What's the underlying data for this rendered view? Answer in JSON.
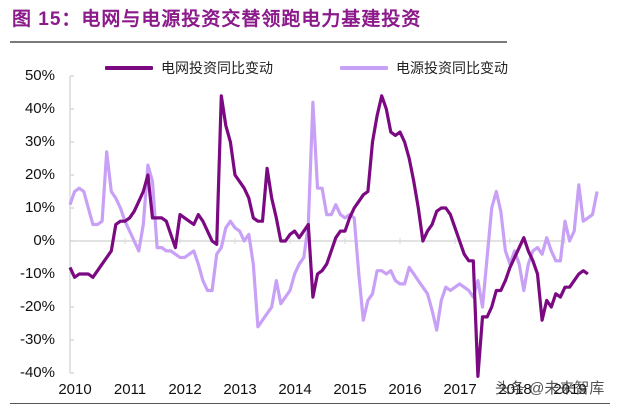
{
  "title": "图 15：电网与电源投资交替领跑电力基建投资",
  "watermark": "头条 @未来智库",
  "colors": {
    "title": "#8b1a8b",
    "grid_series": "#7b0a82",
    "power_series": "#c8a0f5",
    "axis": "#d9d9d9"
  },
  "legend": [
    {
      "name": "电网投资同比变动",
      "color": "#7b0a82"
    },
    {
      "name": "电源投资同比变动",
      "color": "#c8a0f5"
    }
  ],
  "chart_data": {
    "type": "line",
    "title": "图 15：电网与电源投资交替领跑电力基建投资",
    "xlabel": "",
    "ylabel": "",
    "ylim": [
      -0.4,
      0.5
    ],
    "yticks": [
      "50%",
      "40%",
      "30%",
      "20%",
      "10%",
      "0%",
      "-10%",
      "-20%",
      "-30%",
      "-40%"
    ],
    "xticks": [
      "2010",
      "2011",
      "2012",
      "2013",
      "2014",
      "2015",
      "2016",
      "2017",
      "2018",
      "2019"
    ],
    "grid": "zero-line only",
    "legend_position": "top",
    "x_unit": "monthly, Jan 2010 onwards",
    "series": [
      {
        "name": "电网投资同比变动",
        "color": "#7b0a82",
        "values": [
          -8,
          -11,
          -10,
          -10,
          -10,
          -11,
          -9,
          -7,
          -5,
          -3,
          5,
          6,
          6,
          7,
          9,
          12,
          15,
          20,
          7,
          7,
          7,
          6,
          2,
          -2,
          8,
          7,
          6,
          5,
          8,
          6,
          3,
          0,
          -1,
          44,
          35,
          30,
          20,
          18,
          16,
          13,
          7,
          6,
          6,
          22,
          13,
          7,
          0,
          0,
          2,
          3,
          1,
          3,
          5,
          -17,
          -10,
          -9,
          -7,
          -3,
          1,
          3,
          3,
          7,
          10,
          12,
          14,
          15,
          30,
          38,
          44,
          40,
          33,
          32,
          33,
          30,
          25,
          18,
          10,
          0,
          3,
          5,
          9,
          10,
          10,
          8,
          4,
          0,
          -4,
          -6,
          -6,
          -41,
          -23,
          -23,
          -20,
          -15,
          -15,
          -12,
          -8,
          -5,
          -2,
          1,
          -3,
          -6,
          -10,
          -24,
          -18,
          -20,
          -16,
          -17,
          -14,
          -14,
          -12,
          -10,
          -9,
          -10
        ]
      },
      {
        "name": "电源投资同比变动",
        "color": "#c8a0f5",
        "values": [
          11,
          15,
          16,
          15,
          10,
          5,
          5,
          6,
          27,
          15,
          13,
          10,
          6,
          3,
          0,
          -3,
          5,
          23,
          18,
          -2,
          -2,
          -3,
          -3,
          -4,
          -5,
          -5,
          -4,
          -3,
          -7,
          -12,
          -15,
          -15,
          -4,
          -2,
          4,
          6,
          4,
          3,
          0,
          2,
          -7,
          -26,
          -24,
          -22,
          -20,
          -12,
          -19,
          -17,
          -15,
          -10,
          -7,
          -5,
          5,
          42,
          16,
          16,
          8,
          8,
          11,
          8,
          7,
          8,
          7,
          -10,
          -24,
          -18,
          -16,
          -9,
          -9,
          -10,
          -9,
          -12,
          -13,
          -13,
          -8,
          -10,
          -12,
          -14,
          -16,
          -21,
          -27,
          -18,
          -14,
          -15,
          -14,
          -13,
          -14,
          -15,
          -17,
          -12,
          -20,
          -5,
          10,
          15,
          9,
          -3,
          -7,
          -3,
          -7,
          -15,
          -7,
          -3,
          -2,
          -4,
          1,
          -3,
          -6,
          -6,
          6,
          0,
          3,
          17,
          6,
          7,
          8,
          15
        ]
      }
    ]
  }
}
